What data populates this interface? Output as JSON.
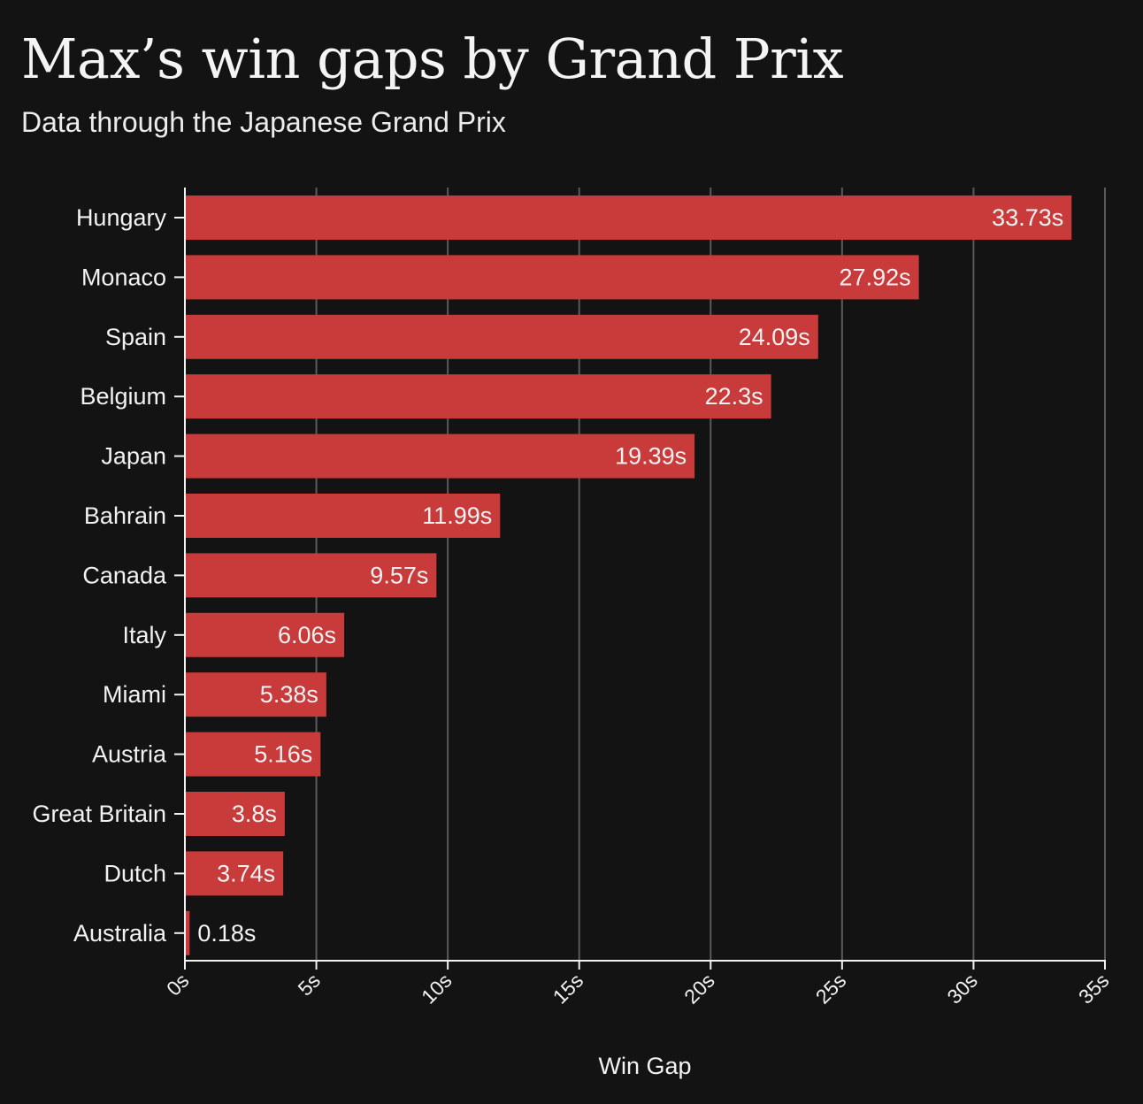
{
  "title": "Max’s win gaps by Grand Prix",
  "subtitle": "Data through the Japanese Grand Prix",
  "chart_data": {
    "type": "bar",
    "orientation": "horizontal",
    "title": "Max’s win gaps by Grand Prix",
    "subtitle": "Data through the Japanese Grand Prix",
    "xlabel": "Win Gap",
    "ylabel": "",
    "xlim": [
      0,
      35
    ],
    "x_ticks": [
      0,
      5,
      10,
      15,
      20,
      25,
      30,
      35
    ],
    "x_tick_labels": [
      "0s",
      "5s",
      "10s",
      "15s",
      "20s",
      "25s",
      "30s",
      "35s"
    ],
    "grid": "vertical",
    "bar_color": "#c93a3a",
    "background_color": "#131313",
    "categories": [
      "Hungary",
      "Monaco",
      "Spain",
      "Belgium",
      "Japan",
      "Bahrain",
      "Canada",
      "Italy",
      "Miami",
      "Austria",
      "Great Britain",
      "Dutch",
      "Australia"
    ],
    "values": [
      33.73,
      27.92,
      24.09,
      22.3,
      19.39,
      11.99,
      9.57,
      6.06,
      5.38,
      5.16,
      3.8,
      3.74,
      0.18
    ],
    "value_labels": [
      "33.73s",
      "27.92s",
      "24.09s",
      "22.3s",
      "19.39s",
      "11.99s",
      "9.57s",
      "6.06s",
      "5.38s",
      "5.16s",
      "3.8s",
      "3.74s",
      "0.18s"
    ]
  }
}
